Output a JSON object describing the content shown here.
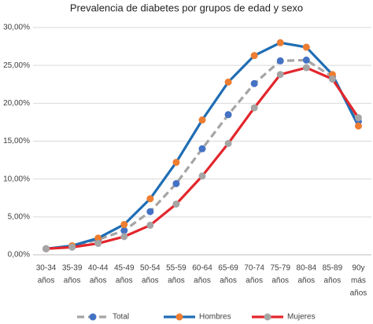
{
  "chart_data": {
    "type": "line",
    "title": "Prevalencia de diabetes por grupos de edad y sexo",
    "categories": [
      [
        "30-34",
        "años"
      ],
      [
        "35-39",
        "años"
      ],
      [
        "40-44",
        "años"
      ],
      [
        "45-49",
        "años"
      ],
      [
        "50-54",
        "años"
      ],
      [
        "55-59",
        "años"
      ],
      [
        "60-64",
        "años"
      ],
      [
        "65-69",
        "años"
      ],
      [
        "70-74",
        "años"
      ],
      [
        "75-79",
        "años"
      ],
      [
        "80-84",
        "años"
      ],
      [
        "85-89",
        "años"
      ],
      [
        "90y",
        "más",
        "años"
      ]
    ],
    "series": [
      {
        "name": "Total",
        "color": "#a5a5a5",
        "marker_color": "#4472c4",
        "dashed": true,
        "values": [
          0.8,
          1.1,
          2.0,
          3.2,
          5.7,
          9.4,
          14.0,
          18.5,
          22.6,
          25.6,
          25.7,
          23.5,
          17.6
        ]
      },
      {
        "name": "Hombres",
        "color": "#1f6db4",
        "marker_color": "#ed7d31",
        "dashed": false,
        "values": [
          0.8,
          1.2,
          2.2,
          4.0,
          7.4,
          12.2,
          17.8,
          22.8,
          26.3,
          28.0,
          27.4,
          23.8,
          17.0
        ]
      },
      {
        "name": "Mujeres",
        "color": "#e3262c",
        "marker_color": "#a5a5a5",
        "dashed": false,
        "values": [
          0.8,
          1.0,
          1.5,
          2.4,
          3.9,
          6.7,
          10.4,
          14.7,
          19.4,
          23.8,
          24.7,
          23.2,
          18.1
        ]
      }
    ],
    "ylim": [
      0,
      30
    ],
    "yticks": [
      {
        "value": 0,
        "label": "0,00%"
      },
      {
        "value": 5,
        "label": "5,00%"
      },
      {
        "value": 10,
        "label": "10,00%"
      },
      {
        "value": 15,
        "label": "15,00%"
      },
      {
        "value": 20,
        "label": "20,00%"
      },
      {
        "value": 25,
        "label": "25,00%"
      },
      {
        "value": 30,
        "label": "30,00%"
      }
    ],
    "grid": true,
    "legend": "bottom"
  }
}
